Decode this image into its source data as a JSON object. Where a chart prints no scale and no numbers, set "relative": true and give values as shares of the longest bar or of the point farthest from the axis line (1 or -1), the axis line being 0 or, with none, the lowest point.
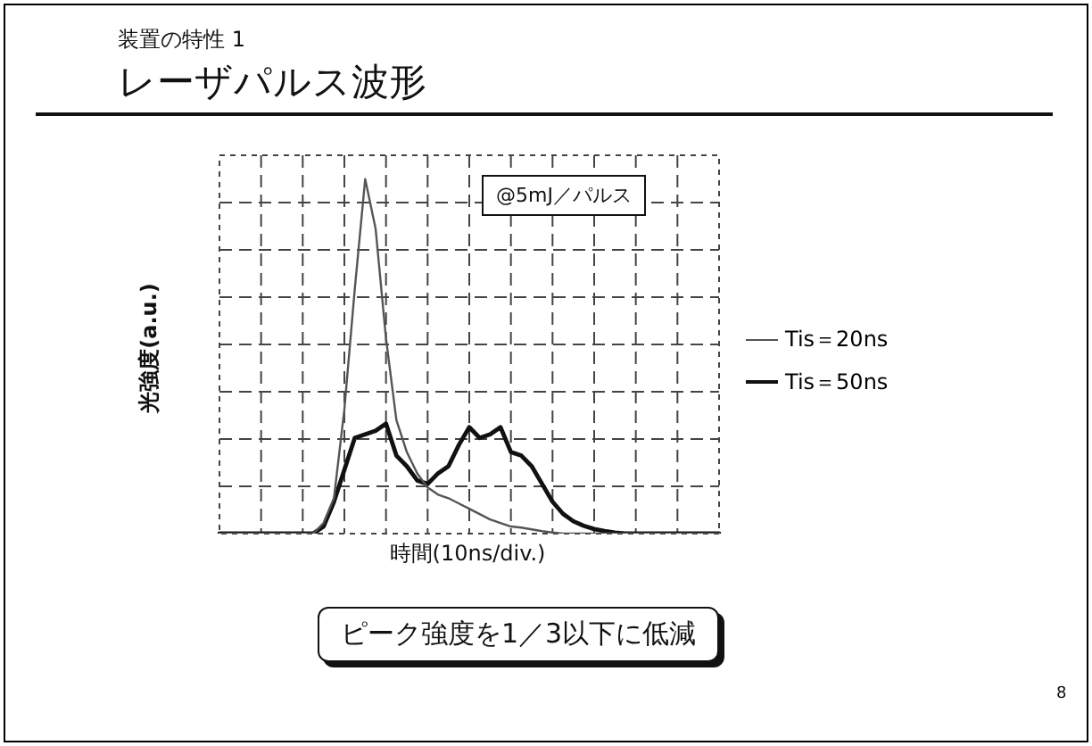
{
  "chart_data": {
    "type": "line",
    "subtitle": "装置の特性 1",
    "title": "レーザパルス波形",
    "xlabel": "時間(10ns/div.)",
    "ylabel": "光強度(a.u.)",
    "relative": true,
    "grid": true,
    "legend": "right",
    "marker": "none",
    "line_style": "solid",
    "categories": [
      null,
      null,
      null,
      null,
      null,
      null,
      null,
      null,
      null,
      null,
      null,
      null,
      null,
      null,
      null,
      null,
      null,
      null,
      null,
      null,
      null,
      null,
      null,
      null,
      null,
      null,
      null,
      null,
      null,
      null,
      null,
      null,
      null,
      null,
      null,
      null,
      null,
      null,
      null,
      null,
      null,
      null,
      null,
      null,
      null,
      null,
      null,
      null,
      null
    ],
    "series": [
      {
        "name": "Tis＝20ns",
        "color": "#555555",
        "values": [
          0,
          0,
          0,
          0,
          0,
          0,
          0,
          0,
          0,
          0,
          0.03,
          0.1,
          0.35,
          0.69,
          1,
          0.86,
          0.55,
          0.32,
          0.23,
          0.17,
          0.13,
          0.11,
          0.1,
          0.085,
          0.07,
          0.055,
          0.04,
          0.03,
          0.02,
          0.017,
          0.012,
          0.007,
          0.003,
          0,
          0,
          0,
          0,
          0,
          0,
          0,
          0,
          0,
          0,
          0,
          0,
          0,
          0,
          0,
          0
        ]
      },
      {
        "name": "Tis＝50ns",
        "color": "#111111",
        "values": [
          0,
          0,
          0,
          0,
          0,
          0,
          0,
          0,
          0,
          0,
          0.02,
          0.09,
          0.18,
          0.27,
          0.28,
          0.29,
          0.31,
          0.22,
          0.19,
          0.15,
          0.14,
          0.17,
          0.19,
          0.25,
          0.3,
          0.27,
          0.28,
          0.3,
          0.23,
          0.22,
          0.19,
          0.14,
          0.09,
          0.056,
          0.035,
          0.022,
          0.013,
          0.007,
          0.003,
          0,
          0,
          0,
          0,
          0,
          0,
          0,
          0,
          0,
          0
        ]
      }
    ],
    "annotations": [
      "@5mJ／パルス",
      "ピーク強度を1／3以下に低減",
      "8"
    ]
  }
}
